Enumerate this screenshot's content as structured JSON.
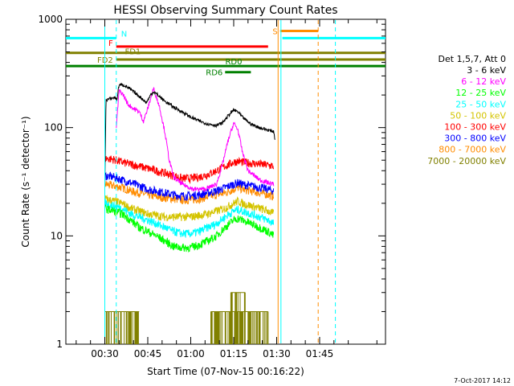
{
  "chart_data": {
    "type": "line",
    "title": "HESSI Observing Summary Count Rates",
    "xlabel": "Start Time (07-Nov-15 00:16:22)",
    "ylabel": "Count Rate (s⁻¹ detector⁻¹)",
    "yscale": "log",
    "ylim": [
      1,
      1000
    ],
    "xlim_minutes": [
      16.4,
      128
    ],
    "x_ticks": [
      {
        "minutes": 30,
        "label": "00:30"
      },
      {
        "minutes": 45,
        "label": "00:45"
      },
      {
        "minutes": 60,
        "label": "01:00"
      },
      {
        "minutes": 75,
        "label": "01:15"
      },
      {
        "minutes": 90,
        "label": "01:30"
      },
      {
        "minutes": 105,
        "label": "01:45"
      }
    ],
    "y_ticks": [
      {
        "value": 1,
        "label": "1"
      },
      {
        "value": 10,
        "label": "10"
      },
      {
        "value": 100,
        "label": "100"
      },
      {
        "value": 1000,
        "label": "1000"
      }
    ],
    "legend": {
      "position": "right",
      "header": "Det 1,5,7, Att 0",
      "entries": [
        {
          "label": "3 - 6 keV",
          "color": "#000000"
        },
        {
          "label": "6 - 12 keV",
          "color": "#ff00ff"
        },
        {
          "label": "12 - 25 keV",
          "color": "#00ff00"
        },
        {
          "label": "25 - 50 keV",
          "color": "#00ffff"
        },
        {
          "label": "50 - 100 keV",
          "color": "#d4c400"
        },
        {
          "label": "100 - 300 keV",
          "color": "#ff0000"
        },
        {
          "label": "300 - 800 keV",
          "color": "#0000ff"
        },
        {
          "label": "800 - 7000 keV",
          "color": "#ff8c00"
        },
        {
          "label": "7000 - 20000 keV",
          "color": "#808000"
        }
      ]
    },
    "series": [
      {
        "name": "3 - 6 keV",
        "color": "#000000",
        "points": [
          [
            30,
            28
          ],
          [
            30.4,
            180
          ],
          [
            32,
            185
          ],
          [
            33.6,
            190
          ],
          [
            34.2,
            180
          ],
          [
            35,
            250
          ],
          [
            37,
            245
          ],
          [
            39,
            225
          ],
          [
            41,
            205
          ],
          [
            43,
            185
          ],
          [
            44.5,
            170
          ],
          [
            46,
            200
          ],
          [
            47,
            215
          ],
          [
            48.5,
            200
          ],
          [
            51,
            175
          ],
          [
            54,
            155
          ],
          [
            57,
            140
          ],
          [
            60,
            125
          ],
          [
            63,
            115
          ],
          [
            66,
            108
          ],
          [
            69,
            105
          ],
          [
            71,
            110
          ],
          [
            73,
            128
          ],
          [
            75,
            145
          ],
          [
            76.5,
            140
          ],
          [
            78,
            125
          ],
          [
            81,
            108
          ],
          [
            84,
            100
          ],
          [
            87,
            95
          ],
          [
            89,
            92
          ],
          [
            89.5,
            75
          ]
        ]
      },
      {
        "name": "6 - 12 keV",
        "color": "#ff00ff",
        "points": [
          [
            34,
            100
          ],
          [
            35,
            220
          ],
          [
            36.5,
            200
          ],
          [
            38,
            165
          ],
          [
            40,
            150
          ],
          [
            42,
            140
          ],
          [
            43.5,
            115
          ],
          [
            45,
            150
          ],
          [
            47,
            230
          ],
          [
            49,
            160
          ],
          [
            51,
            90
          ],
          [
            52.5,
            50
          ],
          [
            54,
            35
          ],
          [
            57,
            30
          ],
          [
            61,
            27
          ],
          [
            65,
            27
          ],
          [
            69,
            30
          ],
          [
            71,
            45
          ],
          [
            73,
            75
          ],
          [
            75,
            110
          ],
          [
            76.5,
            95
          ],
          [
            78,
            60
          ],
          [
            80,
            40
          ],
          [
            84,
            33
          ],
          [
            87,
            31
          ],
          [
            89,
            30
          ]
        ]
      },
      {
        "name": "12 - 25 keV",
        "color": "#00ff00",
        "points": [
          [
            30,
            18
          ],
          [
            33,
            17
          ],
          [
            36,
            16
          ],
          [
            39,
            14
          ],
          [
            42,
            12
          ],
          [
            45,
            11
          ],
          [
            48,
            10
          ],
          [
            51,
            9
          ],
          [
            54,
            8
          ],
          [
            57,
            7.8
          ],
          [
            60,
            7.8
          ],
          [
            63,
            8.3
          ],
          [
            66,
            9
          ],
          [
            69,
            10
          ],
          [
            72,
            12
          ],
          [
            75,
            14
          ],
          [
            76.5,
            14.5
          ],
          [
            78,
            14
          ],
          [
            81,
            13
          ],
          [
            84,
            12
          ],
          [
            87,
            11
          ],
          [
            89,
            10
          ]
        ]
      },
      {
        "name": "25 - 50 keV",
        "color": "#00ffff",
        "points": [
          [
            30,
            20
          ],
          [
            33,
            19
          ],
          [
            36,
            18
          ],
          [
            39,
            16
          ],
          [
            42,
            15
          ],
          [
            45,
            14
          ],
          [
            48,
            13
          ],
          [
            51,
            12
          ],
          [
            54,
            11
          ],
          [
            57,
            10.5
          ],
          [
            60,
            10.5
          ],
          [
            63,
            11
          ],
          [
            66,
            12
          ],
          [
            69,
            13
          ],
          [
            72,
            15
          ],
          [
            75,
            17
          ],
          [
            76.5,
            17.5
          ],
          [
            78,
            17
          ],
          [
            81,
            16
          ],
          [
            84,
            15
          ],
          [
            87,
            14
          ],
          [
            89,
            13
          ]
        ]
      },
      {
        "name": "50 - 100 keV",
        "color": "#d4c400",
        "points": [
          [
            30,
            22
          ],
          [
            33,
            21
          ],
          [
            36,
            20
          ],
          [
            39,
            18
          ],
          [
            42,
            17
          ],
          [
            45,
            16
          ],
          [
            48,
            15.5
          ],
          [
            51,
            15
          ],
          [
            54,
            15
          ],
          [
            57,
            15
          ],
          [
            60,
            15
          ],
          [
            63,
            15.5
          ],
          [
            66,
            16
          ],
          [
            69,
            17
          ],
          [
            72,
            18
          ],
          [
            75,
            20
          ],
          [
            76.5,
            21
          ],
          [
            78,
            20
          ],
          [
            81,
            19
          ],
          [
            84,
            18
          ],
          [
            87,
            17
          ],
          [
            89,
            16
          ]
        ]
      },
      {
        "name": "100 - 300 keV",
        "color": "#ff0000",
        "points": [
          [
            30,
            52
          ],
          [
            33,
            51
          ],
          [
            36,
            48
          ],
          [
            39,
            46
          ],
          [
            42,
            44
          ],
          [
            45,
            42
          ],
          [
            48,
            40
          ],
          [
            51,
            38
          ],
          [
            54,
            36
          ],
          [
            57,
            34
          ],
          [
            60,
            34
          ],
          [
            63,
            35
          ],
          [
            66,
            37
          ],
          [
            69,
            40
          ],
          [
            72,
            44
          ],
          [
            75,
            48
          ],
          [
            76.5,
            49
          ],
          [
            78,
            48
          ],
          [
            81,
            47
          ],
          [
            84,
            46
          ],
          [
            87,
            45
          ],
          [
            89,
            44
          ]
        ]
      },
      {
        "name": "300 - 800 keV",
        "color": "#0000ff",
        "points": [
          [
            30,
            36
          ],
          [
            33,
            35
          ],
          [
            36,
            33
          ],
          [
            39,
            31
          ],
          [
            42,
            29
          ],
          [
            45,
            27
          ],
          [
            48,
            26
          ],
          [
            51,
            25
          ],
          [
            54,
            24
          ],
          [
            57,
            23.5
          ],
          [
            60,
            23.5
          ],
          [
            63,
            24
          ],
          [
            66,
            25
          ],
          [
            69,
            26
          ],
          [
            72,
            28
          ],
          [
            75,
            30
          ],
          [
            76.5,
            31
          ],
          [
            78,
            30
          ],
          [
            81,
            29
          ],
          [
            84,
            28
          ],
          [
            87,
            27
          ],
          [
            89,
            26
          ]
        ]
      },
      {
        "name": "800 - 7000 keV",
        "color": "#ff8c00",
        "points": [
          [
            30,
            30
          ],
          [
            33,
            29
          ],
          [
            36,
            28
          ],
          [
            39,
            26
          ],
          [
            42,
            25
          ],
          [
            45,
            24
          ],
          [
            48,
            23
          ],
          [
            51,
            22.5
          ],
          [
            54,
            22
          ],
          [
            57,
            21.5
          ],
          [
            60,
            21.5
          ],
          [
            63,
            22
          ],
          [
            66,
            23
          ],
          [
            69,
            24
          ],
          [
            72,
            25
          ],
          [
            75,
            27
          ],
          [
            76.5,
            28
          ],
          [
            78,
            27
          ],
          [
            81,
            26
          ],
          [
            84,
            25
          ],
          [
            87,
            24
          ],
          [
            89,
            23
          ]
        ]
      },
      {
        "name": "7000 - 20000 keV",
        "color": "#808000",
        "spikes": [
          {
            "start": 30,
            "end": 42,
            "low": 1,
            "high": 2
          },
          {
            "start": 67,
            "end": 87,
            "low": 1,
            "high": 2
          },
          {
            "start": 74,
            "end": 79,
            "low": 1,
            "high": 3
          }
        ]
      }
    ],
    "flag_bars": [
      {
        "label": "N",
        "color": "#00ffff",
        "value": 670,
        "segments": [
          [
            16.4,
            34
          ],
          [
            92,
            128
          ]
        ]
      },
      {
        "label": "S",
        "color": "#ff8c00",
        "value": 780,
        "segments": [
          [
            91.2,
            104.5
          ]
        ]
      },
      {
        "label": "F",
        "color": "#ff0000",
        "value": 560,
        "segments": [
          [
            34,
            87
          ]
        ]
      },
      {
        "label": "FD1",
        "color": "#808000",
        "value": 490,
        "segments": [
          [
            16.4,
            128
          ]
        ]
      },
      {
        "label": "FD2",
        "color": "#808000",
        "value": 425,
        "segments": [
          [
            34,
            128
          ]
        ]
      },
      {
        "label": "RD0",
        "color": "#008000",
        "value": 370,
        "segments": [
          [
            16.4,
            128
          ]
        ]
      },
      {
        "label": "RD6",
        "color": "#008000",
        "value": 325,
        "segments": [
          [
            72,
            81
          ]
        ]
      }
    ],
    "vertical_lines": [
      {
        "minutes": 30,
        "color": "#00ffff",
        "style": "solid"
      },
      {
        "minutes": 34,
        "color": "#00ffff",
        "style": "dashed"
      },
      {
        "minutes": 90.5,
        "color": "#ff8c00",
        "style": "solid"
      },
      {
        "minutes": 91.5,
        "color": "#00ffff",
        "style": "solid"
      },
      {
        "minutes": 104.5,
        "color": "#ff8c00",
        "style": "dashed"
      },
      {
        "minutes": 110.5,
        "color": "#00ffff",
        "style": "dashed"
      }
    ]
  },
  "footer": {
    "timestamp": "7-Oct-2017 14:12"
  }
}
